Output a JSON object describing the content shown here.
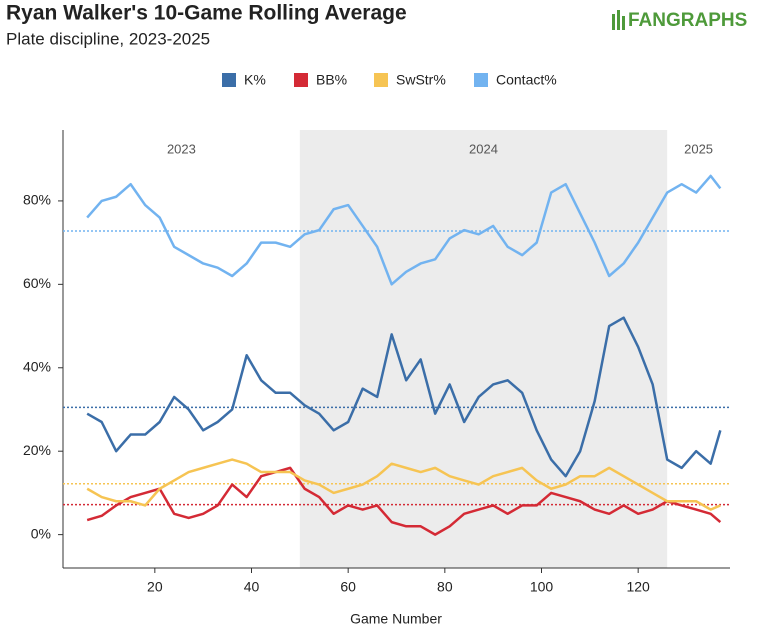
{
  "chart_data": {
    "type": "line",
    "title": "Ryan Walker's 10-Game Rolling Average",
    "subtitle": "Plate discipline, 2023-2025",
    "logo": "FANGRAPHS",
    "xlabel": "Game Number",
    "x": [
      6,
      9,
      12,
      15,
      18,
      21,
      24,
      27,
      30,
      33,
      36,
      39,
      42,
      45,
      48,
      51,
      54,
      57,
      60,
      63,
      66,
      69,
      72,
      75,
      78,
      81,
      84,
      87,
      90,
      93,
      96,
      99,
      102,
      105,
      108,
      111,
      114,
      117,
      120,
      123,
      126,
      129,
      132,
      135,
      137
    ],
    "series": [
      {
        "name": "K%",
        "color": "#3b6ea8",
        "average": 30.5,
        "values": [
          29,
          27,
          20,
          24,
          24,
          27,
          33,
          30,
          25,
          27,
          30,
          43,
          37,
          34,
          34,
          31,
          29,
          25,
          27,
          35,
          33,
          48,
          37,
          42,
          29,
          36,
          27,
          33,
          36,
          37,
          34,
          25,
          18,
          14,
          20,
          32,
          50,
          52,
          45,
          36,
          18,
          16,
          20,
          17,
          25
        ]
      },
      {
        "name": "BB%",
        "color": "#d42a35",
        "average": 7.2,
        "values": [
          3.5,
          4.5,
          7,
          9,
          10,
          11,
          5,
          4,
          5,
          7,
          12,
          9,
          14,
          15,
          16,
          11,
          9,
          5,
          7,
          6,
          7,
          3,
          2,
          2,
          0,
          2,
          5,
          6,
          7,
          5,
          7,
          7,
          10,
          9,
          8,
          6,
          5,
          7,
          5,
          6,
          8,
          7,
          6,
          5,
          3
        ]
      },
      {
        "name": "SwStr%",
        "color": "#f6c453",
        "average": 12.2,
        "values": [
          11,
          9,
          8,
          8,
          7,
          11,
          13,
          15,
          16,
          17,
          18,
          17,
          15,
          15,
          15,
          13,
          12,
          10,
          11,
          12,
          14,
          17,
          16,
          15,
          16,
          14,
          13,
          12,
          14,
          15,
          16,
          13,
          11,
          12,
          14,
          14,
          16,
          14,
          12,
          10,
          8,
          8,
          8,
          6,
          7
        ]
      },
      {
        "name": "Contact%",
        "color": "#72b3f0",
        "average": 72.8,
        "values": [
          76,
          80,
          81,
          84,
          79,
          76,
          69,
          67,
          65,
          64,
          62,
          65,
          70,
          70,
          69,
          72,
          73,
          78,
          79,
          74,
          69,
          60,
          63,
          65,
          66,
          71,
          73,
          72,
          74,
          69,
          67,
          70,
          82,
          84,
          77,
          70,
          62,
          65,
          70,
          76,
          82,
          84,
          82,
          86,
          83
        ]
      }
    ],
    "seasons": [
      {
        "label": "2023",
        "range": [
          1,
          50
        ]
      },
      {
        "label": "2024",
        "range": [
          50,
          126
        ]
      },
      {
        "label": "2025",
        "range": [
          126,
          139
        ]
      }
    ],
    "xlim": [
      1,
      139
    ],
    "xticks": [
      20,
      40,
      60,
      80,
      100,
      120
    ],
    "ylim": [
      -8,
      97
    ],
    "yticks": [
      {
        "value": 0,
        "label": "0%"
      },
      {
        "value": 20,
        "label": "20%"
      },
      {
        "value": 40,
        "label": "40%"
      },
      {
        "value": 60,
        "label": "60%"
      },
      {
        "value": 80,
        "label": "80%"
      }
    ]
  }
}
